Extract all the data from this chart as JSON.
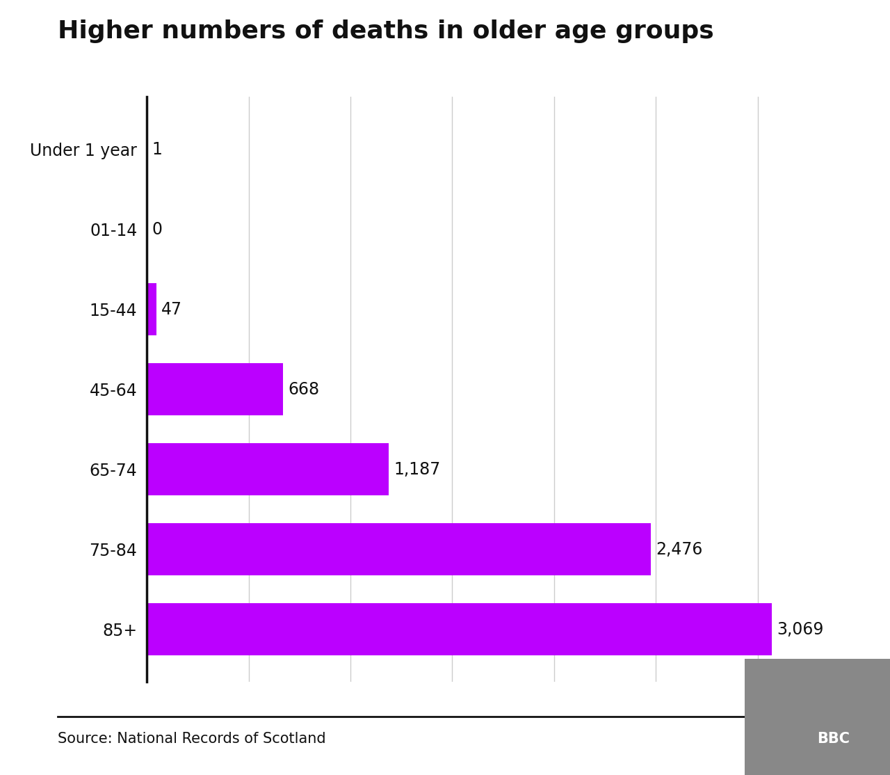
{
  "title": "Higher numbers of deaths in older age groups",
  "categories": [
    "Under 1 year",
    "01-14",
    "15-44",
    "45-64",
    "65-74",
    "75-84",
    "85+"
  ],
  "values": [
    1,
    0,
    47,
    668,
    1187,
    2476,
    3069
  ],
  "labels": [
    "1",
    "0",
    "47",
    "668",
    "1,187",
    "2,476",
    "3,069"
  ],
  "bar_color": "#bb00ff",
  "background_color": "#ffffff",
  "title_fontsize": 26,
  "label_fontsize": 17,
  "tick_fontsize": 17,
  "source_text": "Source: National Records of Scotland",
  "source_fontsize": 15,
  "bbc_text": "BBC",
  "xlim": [
    0,
    3300
  ],
  "grid_ticks": [
    500,
    1000,
    1500,
    2000,
    2500,
    3000
  ],
  "footer_line_color": "#111111"
}
